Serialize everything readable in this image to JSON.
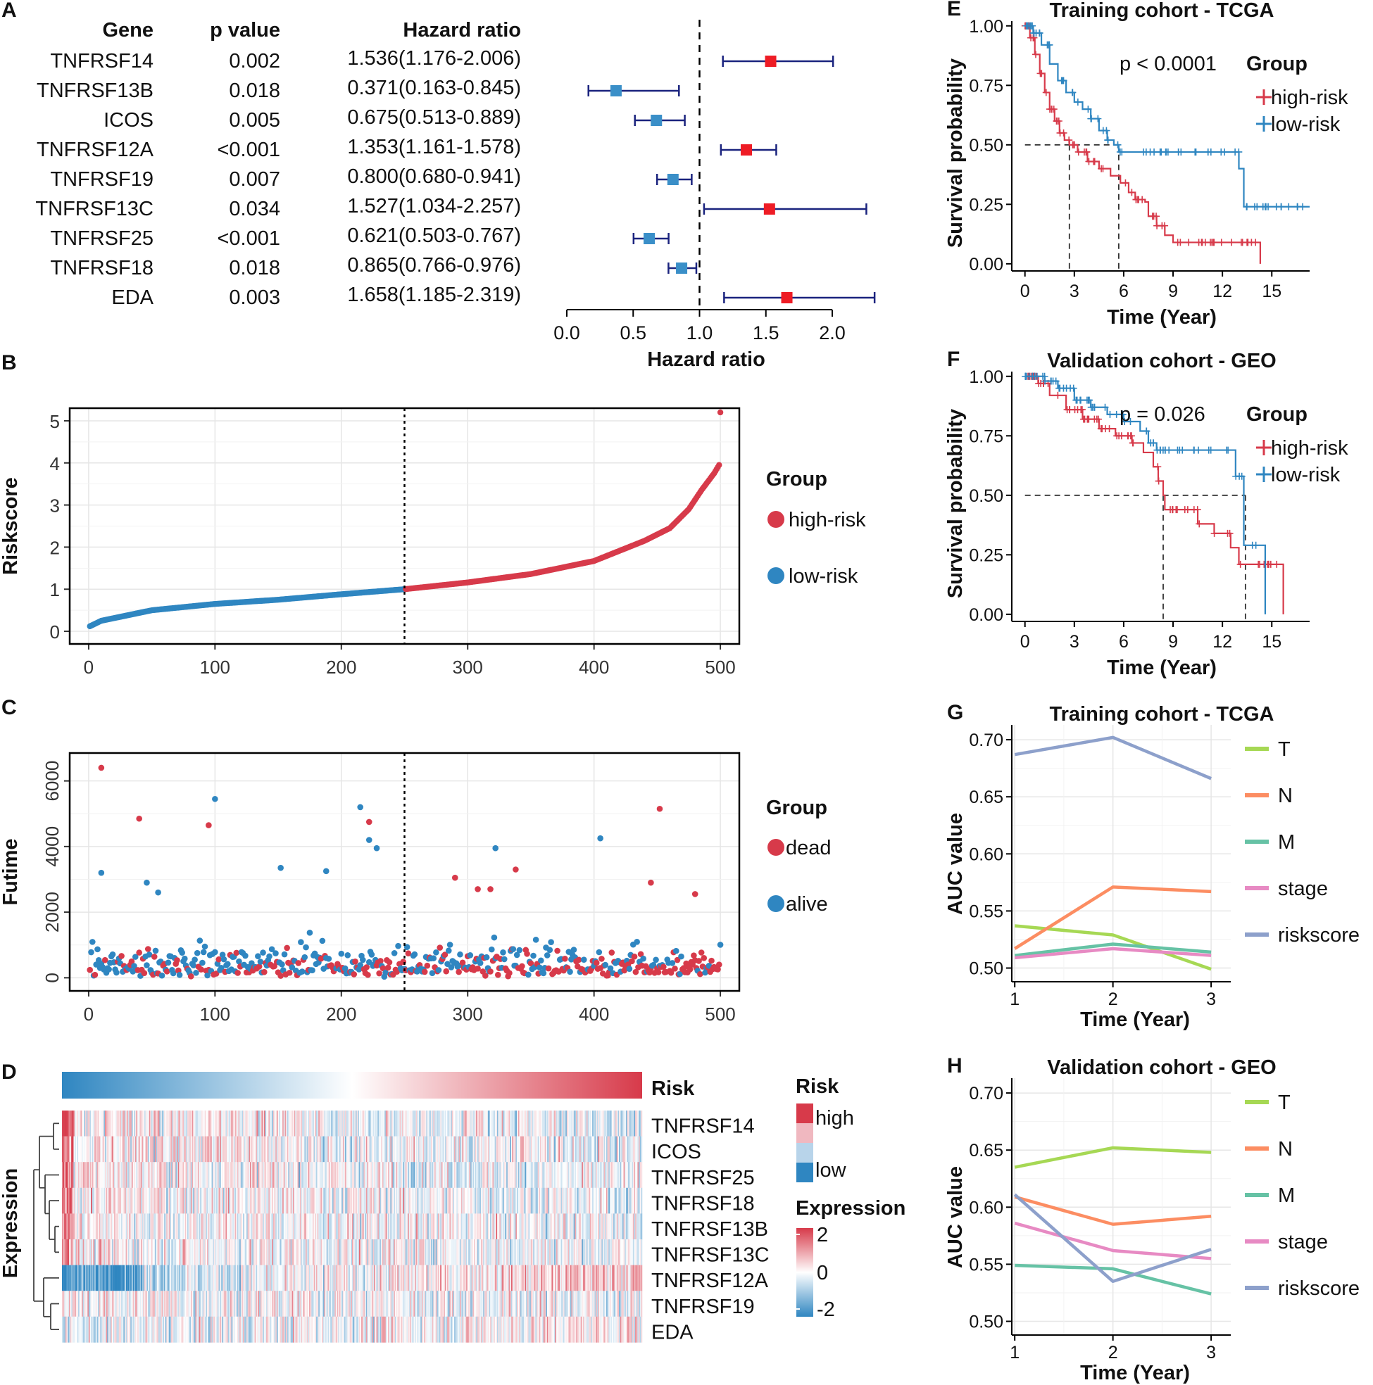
{
  "colors": {
    "red": "#d73a4a",
    "blue": "#2f86c1",
    "navy": "#1a237e",
    "red_sq": "#ee1c25",
    "blue_sq": "#3a8fc8",
    "grid": "#e6e6e6"
  },
  "chart_data": [
    {
      "panel": "A",
      "type": "forest",
      "xlabel": "Hazard ratio",
      "xlim": [
        0,
        2.3
      ],
      "ref_line": 1.0,
      "xticks": [
        0.0,
        0.5,
        1.0,
        1.5,
        2.0
      ],
      "xtick_labels": [
        "0.0",
        "0.5",
        "1.0",
        "1.5",
        "2.0"
      ],
      "columns": [
        "Gene",
        "p value",
        "Hazard ratio"
      ],
      "rows": [
        {
          "gene": "TNFRSF14",
          "p": "0.002",
          "hr_text": "1.536(1.176-2.006)",
          "hr": 1.536,
          "lo": 1.176,
          "hi": 2.006
        },
        {
          "gene": "TNFRSF13B",
          "p": "0.018",
          "hr_text": "0.371(0.163-0.845)",
          "hr": 0.371,
          "lo": 0.163,
          "hi": 0.845
        },
        {
          "gene": "ICOS",
          "p": "0.005",
          "hr_text": "0.675(0.513-0.889)",
          "hr": 0.675,
          "lo": 0.513,
          "hi": 0.889
        },
        {
          "gene": "TNFRSF12A",
          "p": "<0.001",
          "hr_text": "1.353(1.161-1.578)",
          "hr": 1.353,
          "lo": 1.161,
          "hi": 1.578
        },
        {
          "gene": "TNFRSF19",
          "p": "0.007",
          "hr_text": "0.800(0.680-0.941)",
          "hr": 0.8,
          "lo": 0.68,
          "hi": 0.941
        },
        {
          "gene": "TNFRSF13C",
          "p": "0.034",
          "hr_text": "1.527(1.034-2.257)",
          "hr": 1.527,
          "lo": 1.034,
          "hi": 2.257
        },
        {
          "gene": "TNFRSF25",
          "p": "<0.001",
          "hr_text": "0.621(0.503-0.767)",
          "hr": 0.621,
          "lo": 0.503,
          "hi": 0.767
        },
        {
          "gene": "TNFRSF18",
          "p": "0.018",
          "hr_text": "0.865(0.766-0.976)",
          "hr": 0.865,
          "lo": 0.766,
          "hi": 0.976
        },
        {
          "gene": "EDA",
          "p": "0.003",
          "hr_text": "1.658(1.185-2.319)",
          "hr": 1.658,
          "lo": 1.185,
          "hi": 2.319
        }
      ]
    },
    {
      "panel": "B",
      "type": "scatter",
      "ylabel": "Riskscore",
      "xlim": [
        -15,
        515
      ],
      "ylim": [
        -0.3,
        5.3
      ],
      "xticks": [
        0,
        100,
        200,
        300,
        400,
        500
      ],
      "yticks": [
        0,
        1,
        2,
        3,
        4,
        5
      ],
      "cutoff": 250,
      "n": 500,
      "curve_points": [
        [
          1,
          0.12
        ],
        [
          10,
          0.25
        ],
        [
          50,
          0.5
        ],
        [
          100,
          0.65
        ],
        [
          150,
          0.75
        ],
        [
          200,
          0.88
        ],
        [
          250,
          1.0
        ],
        [
          300,
          1.16
        ],
        [
          350,
          1.36
        ],
        [
          400,
          1.67
        ],
        [
          440,
          2.15
        ],
        [
          460,
          2.45
        ],
        [
          475,
          2.9
        ],
        [
          485,
          3.35
        ],
        [
          495,
          3.75
        ],
        [
          499,
          3.95
        ],
        [
          500,
          5.2
        ]
      ],
      "legend_title": "Group",
      "legend": [
        "high-risk",
        "low-risk"
      ]
    },
    {
      "panel": "C",
      "type": "scatter",
      "ylabel": "Futime",
      "xlim": [
        -15,
        515
      ],
      "ylim": [
        -400,
        6850
      ],
      "xticks": [
        0,
        100,
        200,
        300,
        400,
        500
      ],
      "yticks": [
        0,
        2000,
        4000,
        6000
      ],
      "cutoff": 250,
      "legend_title": "Group",
      "legend": [
        "dead",
        "alive"
      ],
      "highlight_points": [
        {
          "x": 10,
          "y": 6400,
          "s": "dead"
        },
        {
          "x": 40,
          "y": 4850,
          "s": "dead"
        },
        {
          "x": 95,
          "y": 4650,
          "s": "dead"
        },
        {
          "x": 100,
          "y": 5450,
          "s": "alive"
        },
        {
          "x": 10,
          "y": 3200,
          "s": "alive"
        },
        {
          "x": 46,
          "y": 2900,
          "s": "alive"
        },
        {
          "x": 55,
          "y": 2600,
          "s": "alive"
        },
        {
          "x": 152,
          "y": 3350,
          "s": "alive"
        },
        {
          "x": 188,
          "y": 3250,
          "s": "alive"
        },
        {
          "x": 215,
          "y": 5200,
          "s": "alive"
        },
        {
          "x": 222,
          "y": 4750,
          "s": "dead"
        },
        {
          "x": 222,
          "y": 4200,
          "s": "alive"
        },
        {
          "x": 228,
          "y": 3950,
          "s": "alive"
        },
        {
          "x": 290,
          "y": 3050,
          "s": "dead"
        },
        {
          "x": 322,
          "y": 3950,
          "s": "alive"
        },
        {
          "x": 338,
          "y": 3300,
          "s": "dead"
        },
        {
          "x": 405,
          "y": 4250,
          "s": "alive"
        },
        {
          "x": 452,
          "y": 5150,
          "s": "dead"
        },
        {
          "x": 445,
          "y": 2900,
          "s": "dead"
        },
        {
          "x": 480,
          "y": 2550,
          "s": "dead"
        },
        {
          "x": 318,
          "y": 2700,
          "s": "dead"
        },
        {
          "x": 308,
          "y": 2700,
          "s": "dead"
        }
      ]
    },
    {
      "panel": "D",
      "type": "heatmap",
      "row_label": "Expression",
      "top_bar_label": "Risk",
      "n_cols": 500,
      "rows": [
        "TNFRSF14",
        "ICOS",
        "TNFRSF25",
        "TNFRSF18",
        "TNFRSF13B",
        "TNFRSF13C",
        "TNFRSF12A",
        "TNFRSF19",
        "EDA"
      ],
      "trend": [
        0.15,
        0.1,
        0.12,
        0.1,
        0.05,
        0.05,
        -0.35,
        0.05,
        -0.15
      ],
      "legend_risk_title": "Risk",
      "legend_risk": [
        "high",
        "low"
      ],
      "legend_expr_title": "Expression",
      "legend_expr_ticks": [
        "2",
        "0",
        "-2"
      ]
    },
    {
      "panel": "E",
      "type": "kaplan-meier",
      "title": "Training cohort - TCGA",
      "xlabel": "Time (Year)",
      "ylabel": "Survival probability",
      "xlim": [
        -0.8,
        17.3
      ],
      "ylim": [
        -0.03,
        1.02
      ],
      "xticks": [
        0,
        3,
        6,
        9,
        12,
        15
      ],
      "yticks": [
        0.0,
        0.25,
        0.5,
        0.75,
        1.0
      ],
      "ytick_labels": [
        "0.00",
        "0.25",
        "0.50",
        "0.75",
        "1.00"
      ],
      "pvalue": "p < 0.0001",
      "legend_title": "Group",
      "median_lines": [
        2.7,
        5.7
      ],
      "series": [
        {
          "name": "high-risk",
          "points": [
            [
              0,
              1.0
            ],
            [
              0.3,
              0.95
            ],
            [
              0.6,
              0.88
            ],
            [
              0.9,
              0.8
            ],
            [
              1.2,
              0.72
            ],
            [
              1.5,
              0.65
            ],
            [
              1.8,
              0.6
            ],
            [
              2.1,
              0.55
            ],
            [
              2.4,
              0.52
            ],
            [
              2.7,
              0.5
            ],
            [
              3.2,
              0.47
            ],
            [
              3.8,
              0.43
            ],
            [
              4.5,
              0.4
            ],
            [
              5.2,
              0.37
            ],
            [
              5.8,
              0.34
            ],
            [
              6.3,
              0.3
            ],
            [
              6.7,
              0.27
            ],
            [
              7.3,
              0.26
            ],
            [
              7.5,
              0.2
            ],
            [
              8.0,
              0.16
            ],
            [
              8.5,
              0.12
            ],
            [
              9.0,
              0.09
            ],
            [
              14.3,
              0.09
            ],
            [
              14.3,
              0.0
            ]
          ]
        },
        {
          "name": "low-risk",
          "points": [
            [
              0,
              1.0
            ],
            [
              0.5,
              0.97
            ],
            [
              1.0,
              0.92
            ],
            [
              1.5,
              0.84
            ],
            [
              2.0,
              0.77
            ],
            [
              2.5,
              0.72
            ],
            [
              3.0,
              0.68
            ],
            [
              3.5,
              0.65
            ],
            [
              4.0,
              0.61
            ],
            [
              4.5,
              0.56
            ],
            [
              5.0,
              0.52
            ],
            [
              5.4,
              0.5
            ],
            [
              5.7,
              0.47
            ],
            [
              13.0,
              0.47
            ],
            [
              13.0,
              0.4
            ],
            [
              13.3,
              0.4
            ],
            [
              13.3,
              0.24
            ],
            [
              17.3,
              0.24
            ]
          ]
        }
      ]
    },
    {
      "panel": "F",
      "type": "kaplan-meier",
      "title": "Validation cohort - GEO",
      "xlabel": "Time (Year)",
      "ylabel": "Survival probability",
      "xlim": [
        -0.8,
        17.3
      ],
      "ylim": [
        -0.03,
        1.02
      ],
      "xticks": [
        0,
        3,
        6,
        9,
        12,
        15
      ],
      "yticks": [
        0.0,
        0.25,
        0.5,
        0.75,
        1.0
      ],
      "ytick_labels": [
        "0.00",
        "0.25",
        "0.50",
        "0.75",
        "1.00"
      ],
      "pvalue": "p = 0.026",
      "legend_title": "Group",
      "median_lines": [
        8.4,
        13.4
      ],
      "series": [
        {
          "name": "high-risk",
          "points": [
            [
              0,
              1.0
            ],
            [
              0.8,
              0.97
            ],
            [
              1.5,
              0.92
            ],
            [
              2.5,
              0.86
            ],
            [
              3.5,
              0.82
            ],
            [
              4.5,
              0.78
            ],
            [
              5.5,
              0.75
            ],
            [
              6.5,
              0.72
            ],
            [
              7.2,
              0.68
            ],
            [
              7.8,
              0.62
            ],
            [
              8.1,
              0.56
            ],
            [
              8.4,
              0.5
            ],
            [
              8.5,
              0.44
            ],
            [
              10.5,
              0.44
            ],
            [
              10.5,
              0.38
            ],
            [
              11.5,
              0.38
            ],
            [
              11.5,
              0.34
            ],
            [
              12.5,
              0.34
            ],
            [
              12.5,
              0.28
            ],
            [
              13.0,
              0.28
            ],
            [
              13.0,
              0.21
            ],
            [
              15.7,
              0.21
            ],
            [
              15.7,
              0.0
            ]
          ]
        },
        {
          "name": "low-risk",
          "points": [
            [
              0,
              1.0
            ],
            [
              1.2,
              0.98
            ],
            [
              2.0,
              0.95
            ],
            [
              3.0,
              0.9
            ],
            [
              4.0,
              0.87
            ],
            [
              5.0,
              0.84
            ],
            [
              6.0,
              0.81
            ],
            [
              7.0,
              0.77
            ],
            [
              7.5,
              0.72
            ],
            [
              8.0,
              0.69
            ],
            [
              12.8,
              0.69
            ],
            [
              12.8,
              0.58
            ],
            [
              13.3,
              0.58
            ],
            [
              13.3,
              0.29
            ],
            [
              14.6,
              0.29
            ],
            [
              14.6,
              0.0
            ]
          ]
        }
      ]
    },
    {
      "panel": "G",
      "type": "line",
      "title": "Training cohort - TCGA",
      "xlabel": "Time (Year)",
      "ylabel": "AUC value",
      "xlim": [
        0.97,
        3.2
      ],
      "ylim": [
        0.488,
        0.713
      ],
      "xticks": [
        1,
        2,
        3
      ],
      "yticks": [
        0.5,
        0.55,
        0.6,
        0.65,
        0.7
      ],
      "ytick_labels": [
        "0.50",
        "0.55",
        "0.60",
        "0.65",
        "0.70"
      ],
      "series": [
        {
          "name": "T",
          "values": [
            0.537,
            0.529,
            0.499
          ],
          "color": "#a6d854"
        },
        {
          "name": "N",
          "values": [
            0.517,
            0.571,
            0.567
          ],
          "color": "#fc8d62"
        },
        {
          "name": "M",
          "values": [
            0.511,
            0.521,
            0.514
          ],
          "color": "#66c2a5"
        },
        {
          "name": "stage",
          "values": [
            0.509,
            0.517,
            0.511
          ],
          "color": "#e78ac3"
        },
        {
          "name": "riskscore",
          "values": [
            0.687,
            0.702,
            0.666
          ],
          "color": "#8da0cb"
        }
      ]
    },
    {
      "panel": "H",
      "type": "line",
      "title": "Validation cohort - GEO",
      "xlabel": "Time (Year)",
      "ylabel": "AUC value",
      "xlim": [
        0.97,
        3.2
      ],
      "ylim": [
        0.488,
        0.713
      ],
      "xticks": [
        1,
        2,
        3
      ],
      "yticks": [
        0.5,
        0.55,
        0.6,
        0.65,
        0.7
      ],
      "ytick_labels": [
        "0.50",
        "0.55",
        "0.60",
        "0.65",
        "0.70"
      ],
      "series": [
        {
          "name": "T",
          "values": [
            0.635,
            0.652,
            0.648
          ],
          "color": "#a6d854"
        },
        {
          "name": "N",
          "values": [
            0.609,
            0.585,
            0.592
          ],
          "color": "#fc8d62"
        },
        {
          "name": "M",
          "values": [
            0.549,
            0.546,
            0.524
          ],
          "color": "#66c2a5"
        },
        {
          "name": "stage",
          "values": [
            0.586,
            0.562,
            0.555
          ],
          "color": "#e78ac3"
        },
        {
          "name": "riskscore",
          "values": [
            0.611,
            0.535,
            0.563
          ],
          "color": "#8da0cb"
        }
      ]
    }
  ]
}
